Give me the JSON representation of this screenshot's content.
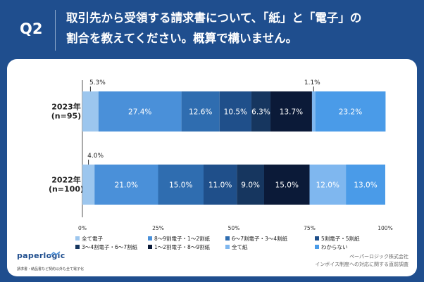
{
  "header": {
    "q_number": "Q2",
    "question": "取引先から受領する請求書について、「紙」と「電子」の\n割合を教えてください。概算で構いません。"
  },
  "chart_data": {
    "type": "bar",
    "orientation": "horizontal",
    "stacked": true,
    "categories": [
      "2023年\n(n=95)",
      "2022年\n(n=100)"
    ],
    "xlim": [
      0,
      100
    ],
    "x_ticks": [
      "0%",
      "25%",
      "50%",
      "75%",
      "100%"
    ],
    "grid": false,
    "legend_position": "bottom",
    "series": [
      {
        "name": "全て電子",
        "values": [
          5.3,
          4.0
        ],
        "color": "#9cc6ee"
      },
      {
        "name": "8～9割電子・1～2割紙",
        "values": [
          27.4,
          21.0
        ],
        "color": "#4a90d9"
      },
      {
        "name": "6～7割電子・3～4割紙",
        "values": [
          12.6,
          15.0
        ],
        "color": "#2f6db0"
      },
      {
        "name": "5割電子・5割紙",
        "values": [
          10.5,
          11.0
        ],
        "color": "#1f4f8a"
      },
      {
        "name": "3～4割電子・6～7割紙",
        "values": [
          6.3,
          9.0
        ],
        "color": "#16365f"
      },
      {
        "name": "1～2割電子・8～9割紙",
        "values": [
          13.7,
          15.0
        ],
        "color": "#0b1a38"
      },
      {
        "name": "全て紙",
        "values": [
          1.1,
          12.0
        ],
        "color": "#7fb7ef"
      },
      {
        "name": "わからない",
        "values": [
          23.2,
          13.0
        ],
        "color": "#4a9be8"
      }
    ],
    "data_labels": [
      [
        "5.3%",
        "27.4%",
        "12.6%",
        "10.5%",
        "6.3%",
        "13.7%",
        "1.1%",
        "23.2%"
      ],
      [
        "4.0%",
        "21.0%",
        "15.0%",
        "11.0%",
        "9.0%",
        "15.0%",
        "12.0%",
        "13.0%"
      ]
    ]
  },
  "footer": {
    "logo": "paperlogic",
    "tagline": "請求書・納品書など契約以外も全て電子化",
    "source_line1": "ペーパーロジック株式会社",
    "source_line2": "インボイス制度への対応に関する直前調査"
  }
}
